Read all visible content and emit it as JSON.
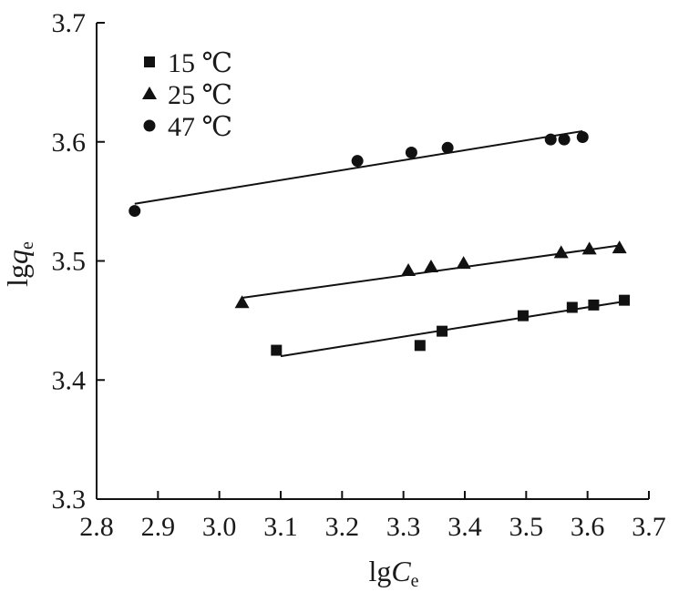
{
  "chart_data": {
    "type": "scatter",
    "xlabel": {
      "main": "lg",
      "italic": "C",
      "sub": "e"
    },
    "ylabel": {
      "main": "lg",
      "italic": "q",
      "sub": "e"
    },
    "xlim": [
      2.8,
      3.7
    ],
    "ylim": [
      3.3,
      3.7
    ],
    "x_ticks": [
      "2.8",
      "2.9",
      "3.0",
      "3.1",
      "3.2",
      "3.3",
      "3.4",
      "3.5",
      "3.6",
      "3.7"
    ],
    "y_ticks": [
      "3.3",
      "3.4",
      "3.5",
      "3.6",
      "3.7"
    ],
    "grid": false,
    "legend_position": "top-left",
    "series": [
      {
        "name": "15 ℃",
        "marker": "square",
        "points": [
          [
            3.093,
            3.425
          ],
          [
            3.327,
            3.429
          ],
          [
            3.363,
            3.441
          ],
          [
            3.495,
            3.454
          ],
          [
            3.575,
            3.461
          ],
          [
            3.61,
            3.463
          ],
          [
            3.66,
            3.467
          ]
        ],
        "fit": [
          [
            3.1,
            3.42
          ],
          [
            3.66,
            3.466
          ]
        ]
      },
      {
        "name": "25 ℃",
        "marker": "triangle",
        "points": [
          [
            3.037,
            3.465
          ],
          [
            3.308,
            3.492
          ],
          [
            3.345,
            3.495
          ],
          [
            3.398,
            3.498
          ],
          [
            3.557,
            3.507
          ],
          [
            3.603,
            3.51
          ],
          [
            3.652,
            3.511
          ]
        ],
        "fit": [
          [
            3.037,
            3.469
          ],
          [
            3.652,
            3.513
          ]
        ]
      },
      {
        "name": "47 ℃",
        "marker": "circle",
        "points": [
          [
            2.862,
            3.542
          ],
          [
            3.225,
            3.584
          ],
          [
            3.313,
            3.591
          ],
          [
            3.372,
            3.595
          ],
          [
            3.54,
            3.602
          ],
          [
            3.562,
            3.602
          ],
          [
            3.592,
            3.604
          ]
        ],
        "fit": [
          [
            2.862,
            3.548
          ],
          [
            3.592,
            3.609
          ]
        ]
      }
    ]
  }
}
